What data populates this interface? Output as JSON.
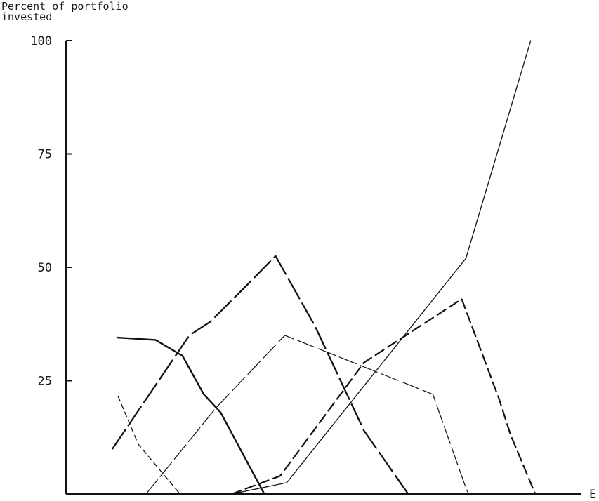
{
  "chart_data": {
    "type": "line",
    "ylabel": "Percent of portfolio\ninvested",
    "xlabel": "E",
    "ylim": [
      0,
      100
    ],
    "y_ticks": [
      100,
      75,
      50,
      25
    ],
    "grid": false,
    "legend": "none",
    "x_domain": [
      0,
      100
    ],
    "series": [
      {
        "style": "thin-solid",
        "points": [
          [
            35.6,
            0
          ],
          [
            47.4,
            2.5
          ],
          [
            85.9,
            52
          ],
          [
            99.8,
            100
          ]
        ]
      },
      {
        "style": "medium-dash",
        "points": [
          [
            35.6,
            0
          ],
          [
            46.0,
            4
          ],
          [
            64.0,
            29
          ],
          [
            85.0,
            43
          ],
          [
            93.0,
            21
          ],
          [
            95.5,
            13
          ],
          [
            100.8,
            0
          ]
        ]
      },
      {
        "style": "long-dash-thin",
        "points": [
          [
            17.2,
            0
          ],
          [
            32.2,
            19
          ],
          [
            47.0,
            35
          ],
          [
            78.8,
            22
          ],
          [
            86.0,
            1
          ],
          [
            86.5,
            0
          ]
        ]
      },
      {
        "style": "long-dash-heavy",
        "points": [
          [
            10.0,
            10
          ],
          [
            26.5,
            35
          ],
          [
            31.0,
            38
          ],
          [
            38.8,
            46
          ],
          [
            45.0,
            52.5
          ],
          [
            53.5,
            37
          ],
          [
            64.0,
            14
          ],
          [
            73.5,
            0
          ]
        ]
      },
      {
        "style": "heavy-solid",
        "points": [
          [
            11.0,
            34.5
          ],
          [
            19.2,
            34
          ],
          [
            25.0,
            30.5
          ],
          [
            29.6,
            22
          ],
          [
            33.2,
            18
          ],
          [
            42.6,
            0
          ]
        ]
      },
      {
        "style": "short-dash-thin",
        "points": [
          [
            11.2,
            21.5
          ],
          [
            15.5,
            11
          ],
          [
            24.5,
            0
          ]
        ]
      }
    ]
  }
}
